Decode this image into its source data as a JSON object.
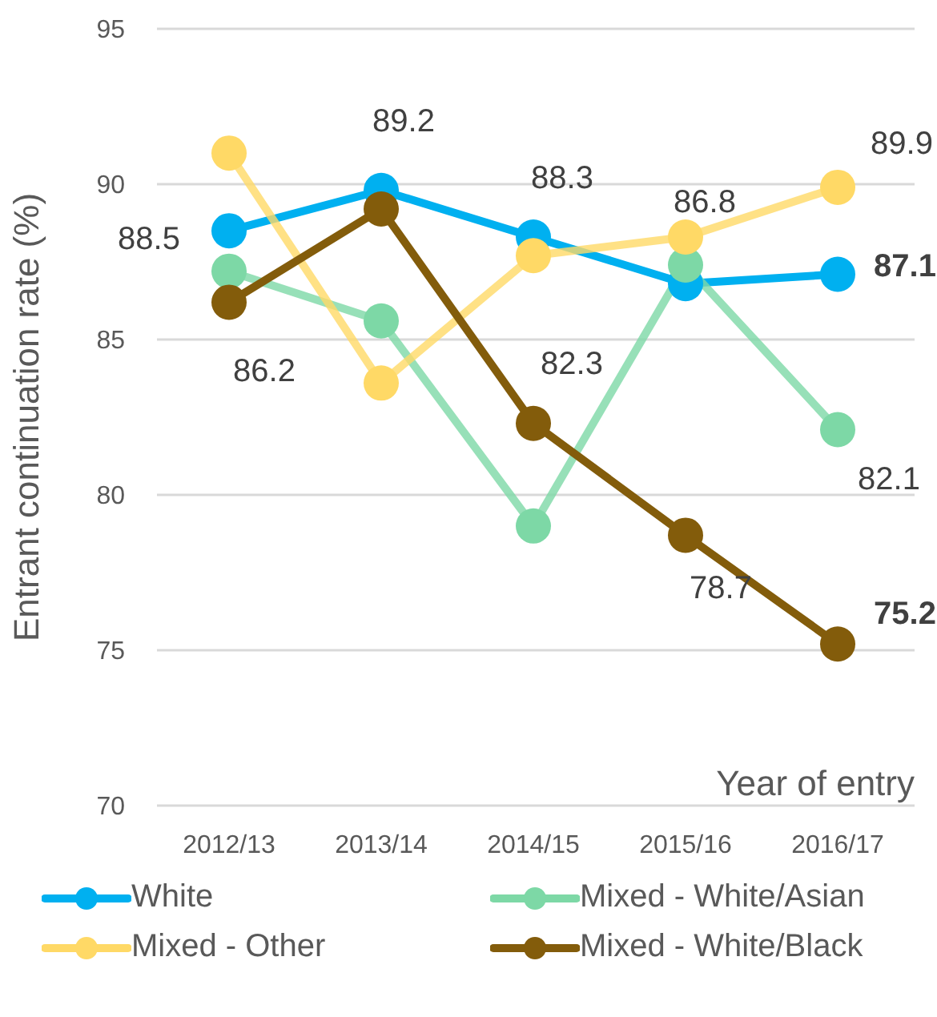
{
  "chart_data": {
    "type": "line",
    "xlabel": "Year of entry",
    "ylabel": "Entrant continuation rate (%)",
    "categories": [
      "2012/13",
      "2013/14",
      "2014/15",
      "2015/16",
      "2016/17"
    ],
    "series": [
      {
        "name": "White",
        "color": "#00b0f0",
        "values": [
          88.5,
          89.8,
          88.3,
          86.8,
          87.1
        ],
        "value_labels": [
          "88.5",
          null,
          "88.3",
          "86.8",
          "87.1"
        ]
      },
      {
        "name": "Mixed - White/Asian",
        "color": "#7dd8a6",
        "values": [
          87.2,
          85.6,
          79.0,
          87.4,
          82.1
        ],
        "value_labels": [
          null,
          null,
          null,
          null,
          "82.1"
        ]
      },
      {
        "name": "Mixed - Other",
        "color": "#ffd966",
        "values": [
          91.0,
          83.6,
          87.7,
          88.3,
          89.9
        ],
        "value_labels": [
          null,
          null,
          null,
          null,
          "89.9"
        ]
      },
      {
        "name": "Mixed - White/Black",
        "color": "#835c0b",
        "values": [
          86.2,
          89.2,
          82.3,
          78.7,
          75.2
        ],
        "value_labels": [
          "86.2",
          "89.2",
          "82.3",
          "78.7",
          "75.2"
        ]
      }
    ],
    "ylim": [
      70,
      95
    ],
    "yticks": [
      70,
      75,
      80,
      85,
      90,
      95
    ],
    "grid": "y",
    "legend": "bottom",
    "marker": "circle",
    "line_style": "solid"
  }
}
